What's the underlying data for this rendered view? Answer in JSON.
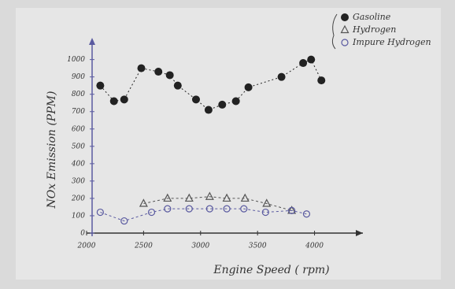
{
  "chart_data": {
    "type": "scatter",
    "x_label": "Engine Speed ( rpm)",
    "y_label": "NOx Emission (PPM)",
    "xlim": [
      2000,
      4300
    ],
    "ylim": [
      0,
      1080
    ],
    "xticks": [
      2000,
      2500,
      3000,
      3500,
      4000
    ],
    "yticks": [
      0,
      100,
      200,
      300,
      400,
      500,
      600,
      700,
      800,
      900,
      1000
    ],
    "series": [
      {
        "name": "Gasoline",
        "color": "#222222",
        "marker": "dot",
        "dash": "2 3",
        "x": [
          2120,
          2240,
          2330,
          2480,
          2630,
          2730,
          2800,
          2960,
          3070,
          3190,
          3310,
          3420,
          3710,
          3900,
          3970,
          4060
        ],
        "values": [
          850,
          760,
          770,
          950,
          930,
          910,
          850,
          770,
          710,
          740,
          760,
          840,
          900,
          980,
          1000,
          880
        ]
      },
      {
        "name": "Hydrogen",
        "color": "#555555",
        "marker": "triangle",
        "dash": "3 3",
        "x": [
          2500,
          2710,
          2900,
          3080,
          3230,
          3390,
          3580,
          3800
        ],
        "values": [
          170,
          200,
          200,
          210,
          200,
          200,
          170,
          130
        ]
      },
      {
        "name": "Impure Hydrogen",
        "color": "#5a5aa0",
        "marker": "circle",
        "dash": "3 3",
        "x": [
          2120,
          2330,
          2570,
          2710,
          2900,
          3080,
          3230,
          3380,
          3570,
          3800,
          3930
        ],
        "values": [
          120,
          70,
          120,
          140,
          140,
          140,
          140,
          140,
          120,
          130,
          110
        ]
      }
    ]
  }
}
